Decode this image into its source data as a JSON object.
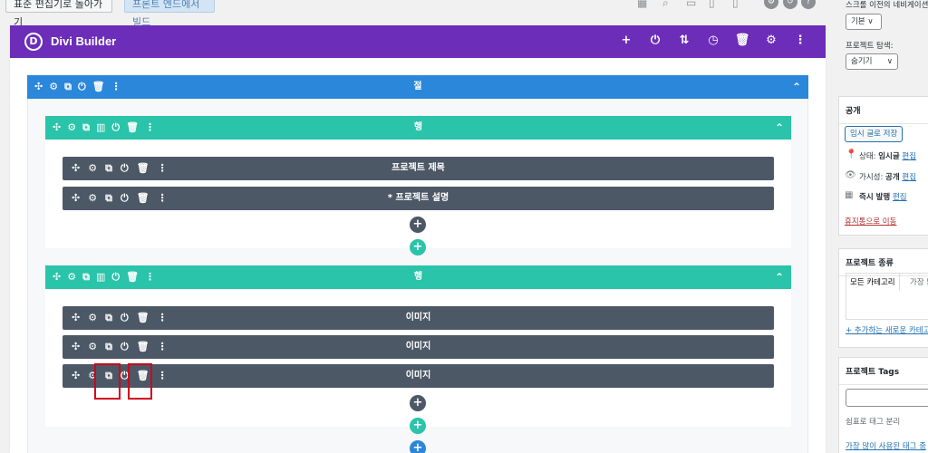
{
  "topbar": {
    "standard_editor_button": "표준 편집기로 돌아가기",
    "frontend_build_button": "프론트 엔드에서 빌드"
  },
  "builder": {
    "title": "Divi Builder",
    "logo_letter": "D",
    "header_icons": [
      "add-icon",
      "power-icon",
      "sort-icon",
      "history-icon",
      "trash-icon",
      "gear-icon",
      "more-icon"
    ],
    "section": {
      "label": "절",
      "rows": [
        {
          "label": "행",
          "modules": [
            {
              "label": "프로젝트 제목"
            },
            {
              "label": "* 프로젝트 설명"
            }
          ]
        },
        {
          "label": "행",
          "modules": [
            {
              "label": "이미지"
            },
            {
              "label": "이미지"
            },
            {
              "label": "이미지"
            }
          ]
        }
      ]
    },
    "colors": {
      "header": "#6c2eb9",
      "section": "#2b87da",
      "row": "#29c4a9",
      "module": "#4c5866",
      "highlight": "#d0021b"
    }
  },
  "sidebar": {
    "scroll_nav_label": "스크롤 이전의 네비게이션",
    "scroll_nav_select": "기본 ∨",
    "project_nav_label": "프로젝트 탐색:",
    "project_nav_select": "숨기기",
    "publish": {
      "title": "공개",
      "save_draft_button": "임시 글로 저장",
      "status_label": "상태:",
      "status_value": "임시글",
      "visibility_label": "가시성:",
      "visibility_value": "공개",
      "publish_label": "즉시 발행",
      "edit_link": "편집",
      "trash_link": "휴지통으로 이동"
    },
    "project_type": {
      "title": "프로젝트 종류",
      "tab_all": "모든 카테고리",
      "tab_popular": "가장 많",
      "add_link": "+ 추가하는 새로운 카테고"
    },
    "project_tags": {
      "title": "프로젝트 Tags",
      "hint": "쉼표로 태그 분리",
      "popular_link": "가장 많이 사용된 태그 중"
    }
  }
}
